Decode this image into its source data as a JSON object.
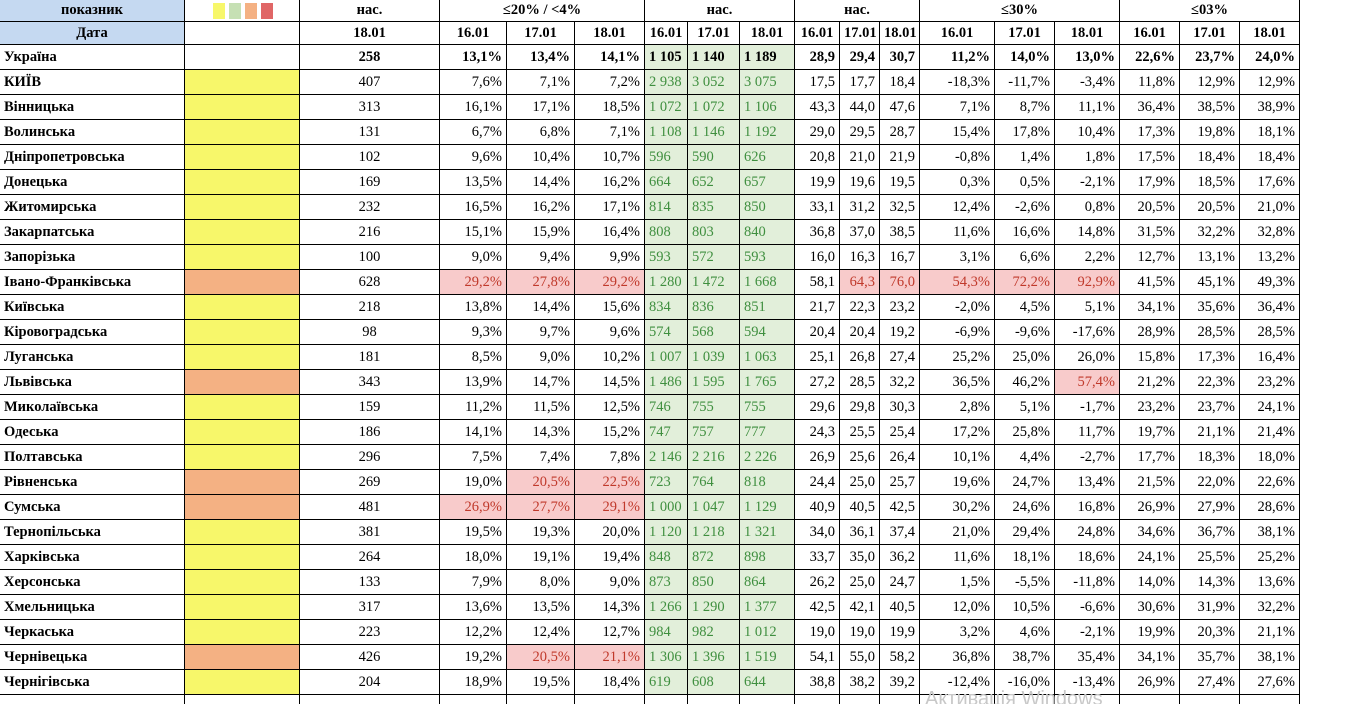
{
  "header": {
    "groups": [
      "показник",
      "нас.",
      "≤20% / <4%",
      "нас.",
      "нас.",
      "≤30%",
      "≤03%"
    ],
    "date_label": "Дата",
    "dates": [
      "18.01",
      "16.01",
      "17.01",
      "18.01",
      "16.01",
      "17.01",
      "18.01",
      "16.01",
      "17.01",
      "18.01",
      "16.01",
      "17.01",
      "18.01",
      "16.01",
      "17.01",
      "18.01"
    ]
  },
  "rows": [
    {
      "cells": [
        "Україна",
        "258",
        "13,1%",
        "13,4%",
        "14,1%",
        "1 105",
        "1 140",
        "1 189",
        "28,9",
        "29,4",
        "30,7",
        "11,2%",
        "14,0%",
        "13,0%",
        "22,6%",
        "23,7%",
        "24,0%"
      ],
      "alerts": []
    },
    {
      "cells": [
        "КИЇВ",
        "407",
        "7,6%",
        "7,1%",
        "7,2%",
        "2 938",
        "3 052",
        "3 075",
        "17,5",
        "17,7",
        "18,4",
        "-18,3%",
        "-11,7%",
        "-3,4%",
        "11,8%",
        "12,9%",
        "12,9%"
      ],
      "flag": "#f7f76a",
      "alerts": []
    },
    {
      "cells": [
        "Вінницька",
        "313",
        "16,1%",
        "17,1%",
        "18,5%",
        "1 072",
        "1 072",
        "1 106",
        "43,3",
        "44,0",
        "47,6",
        "7,1%",
        "8,7%",
        "11,1%",
        "36,4%",
        "38,5%",
        "38,9%"
      ],
      "flag": "#f7f76a",
      "alerts": []
    },
    {
      "cells": [
        "Волинська",
        "131",
        "6,7%",
        "6,8%",
        "7,1%",
        "1 108",
        "1 146",
        "1 192",
        "29,0",
        "29,5",
        "28,7",
        "15,4%",
        "17,8%",
        "10,4%",
        "17,3%",
        "19,8%",
        "18,1%"
      ],
      "flag": "#f7f76a",
      "alerts": []
    },
    {
      "cells": [
        "Дніпропетровська",
        "102",
        "9,6%",
        "10,4%",
        "10,7%",
        "596",
        "590",
        "626",
        "20,8",
        "21,0",
        "21,9",
        "-0,8%",
        "1,4%",
        "1,8%",
        "17,5%",
        "18,4%",
        "18,4%"
      ],
      "flag": "#f7f76a",
      "alerts": []
    },
    {
      "cells": [
        "Донецька",
        "169",
        "13,5%",
        "14,4%",
        "16,2%",
        "664",
        "652",
        "657",
        "19,9",
        "19,6",
        "19,5",
        "0,3%",
        "0,5%",
        "-2,1%",
        "17,9%",
        "18,5%",
        "17,6%"
      ],
      "flag": "#f7f76a",
      "alerts": []
    },
    {
      "cells": [
        "Житомирська",
        "232",
        "16,5%",
        "16,2%",
        "17,1%",
        "814",
        "835",
        "850",
        "33,1",
        "31,2",
        "32,5",
        "12,4%",
        "-2,6%",
        "0,8%",
        "20,5%",
        "20,5%",
        "21,0%"
      ],
      "flag": "#f7f76a",
      "alerts": []
    },
    {
      "cells": [
        "Закарпатська",
        "216",
        "15,1%",
        "15,9%",
        "16,4%",
        "808",
        "803",
        "840",
        "36,8",
        "37,0",
        "38,5",
        "11,6%",
        "16,6%",
        "14,8%",
        "31,5%",
        "32,2%",
        "32,8%"
      ],
      "flag": "#f7f76a",
      "alerts": []
    },
    {
      "cells": [
        "Запорізька",
        "100",
        "9,0%",
        "9,4%",
        "9,9%",
        "593",
        "572",
        "593",
        "16,0",
        "16,3",
        "16,7",
        "3,1%",
        "6,6%",
        "2,2%",
        "12,7%",
        "13,1%",
        "13,2%"
      ],
      "flag": "#f7f76a",
      "alerts": []
    },
    {
      "cells": [
        "Івано-Франківська",
        "628",
        "29,2%",
        "27,8%",
        "29,2%",
        "1 280",
        "1 472",
        "1 668",
        "58,1",
        "64,3",
        "76,0",
        "54,3%",
        "72,2%",
        "92,9%",
        "41,5%",
        "45,1%",
        "49,3%"
      ],
      "flag": "#f4b183",
      "alerts": [
        2,
        3,
        4,
        9,
        10,
        11,
        12,
        13
      ]
    },
    {
      "cells": [
        "Київська",
        "218",
        "13,8%",
        "14,4%",
        "15,6%",
        "834",
        "836",
        "851",
        "21,7",
        "22,3",
        "23,2",
        "-2,0%",
        "4,5%",
        "5,1%",
        "34,1%",
        "35,6%",
        "36,4%"
      ],
      "flag": "#f7f76a",
      "alerts": []
    },
    {
      "cells": [
        "Кіровоградська",
        "98",
        "9,3%",
        "9,7%",
        "9,6%",
        "574",
        "568",
        "594",
        "20,4",
        "20,4",
        "19,2",
        "-6,9%",
        "-9,6%",
        "-17,6%",
        "28,9%",
        "28,5%",
        "28,5%"
      ],
      "flag": "#f7f76a",
      "alerts": []
    },
    {
      "cells": [
        "Луганська",
        "181",
        "8,5%",
        "9,0%",
        "10,2%",
        "1 007",
        "1 039",
        "1 063",
        "25,1",
        "26,8",
        "27,4",
        "25,2%",
        "25,0%",
        "26,0%",
        "15,8%",
        "17,3%",
        "16,4%"
      ],
      "flag": "#f7f76a",
      "alerts": []
    },
    {
      "cells": [
        "Львівська",
        "343",
        "13,9%",
        "14,7%",
        "14,5%",
        "1 486",
        "1 595",
        "1 765",
        "27,2",
        "28,5",
        "32,2",
        "36,5%",
        "46,2%",
        "57,4%",
        "21,2%",
        "22,3%",
        "23,2%"
      ],
      "flag": "#f4b183",
      "alerts": [
        13
      ]
    },
    {
      "cells": [
        "Миколаївська",
        "159",
        "11,2%",
        "11,5%",
        "12,5%",
        "746",
        "755",
        "755",
        "29,6",
        "29,8",
        "30,3",
        "2,8%",
        "5,1%",
        "-1,7%",
        "23,2%",
        "23,7%",
        "24,1%"
      ],
      "flag": "#f7f76a",
      "alerts": []
    },
    {
      "cells": [
        "Одеська",
        "186",
        "14,1%",
        "14,3%",
        "15,2%",
        "747",
        "757",
        "777",
        "24,3",
        "25,5",
        "25,4",
        "17,2%",
        "25,8%",
        "11,7%",
        "19,7%",
        "21,1%",
        "21,4%"
      ],
      "flag": "#f7f76a",
      "alerts": []
    },
    {
      "cells": [
        "Полтавська",
        "296",
        "7,5%",
        "7,4%",
        "7,8%",
        "2 146",
        "2 216",
        "2 226",
        "26,9",
        "25,6",
        "26,4",
        "10,1%",
        "4,4%",
        "-2,7%",
        "17,7%",
        "18,3%",
        "18,0%"
      ],
      "flag": "#f7f76a",
      "alerts": []
    },
    {
      "cells": [
        "Рівненська",
        "269",
        "19,0%",
        "20,5%",
        "22,5%",
        "723",
        "764",
        "818",
        "24,4",
        "25,0",
        "25,7",
        "19,6%",
        "24,7%",
        "13,4%",
        "21,5%",
        "22,0%",
        "22,6%"
      ],
      "flag": "#f4b183",
      "alerts": [
        3,
        4
      ]
    },
    {
      "cells": [
        "Сумська",
        "481",
        "26,9%",
        "27,7%",
        "29,1%",
        "1 000",
        "1 047",
        "1 129",
        "40,9",
        "40,5",
        "42,5",
        "30,2%",
        "24,6%",
        "16,8%",
        "26,9%",
        "27,9%",
        "28,6%"
      ],
      "flag": "#f4b183",
      "alerts": [
        2,
        3,
        4
      ]
    },
    {
      "cells": [
        "Тернопільська",
        "381",
        "19,5%",
        "19,3%",
        "20,0%",
        "1 120",
        "1 218",
        "1 321",
        "34,0",
        "36,1",
        "37,4",
        "21,0%",
        "29,4%",
        "24,8%",
        "34,6%",
        "36,7%",
        "38,1%"
      ],
      "flag": "#f7f76a",
      "alerts": []
    },
    {
      "cells": [
        "Харківська",
        "264",
        "18,0%",
        "19,1%",
        "19,4%",
        "848",
        "872",
        "898",
        "33,7",
        "35,0",
        "36,2",
        "11,6%",
        "18,1%",
        "18,6%",
        "24,1%",
        "25,5%",
        "25,2%"
      ],
      "flag": "#f7f76a",
      "alerts": []
    },
    {
      "cells": [
        "Херсонська",
        "133",
        "7,9%",
        "8,0%",
        "9,0%",
        "873",
        "850",
        "864",
        "26,2",
        "25,0",
        "24,7",
        "1,5%",
        "-5,5%",
        "-11,8%",
        "14,0%",
        "14,3%",
        "13,6%"
      ],
      "flag": "#f7f76a",
      "alerts": []
    },
    {
      "cells": [
        "Хмельницька",
        "317",
        "13,6%",
        "13,5%",
        "14,3%",
        "1 266",
        "1 290",
        "1 377",
        "42,5",
        "42,1",
        "40,5",
        "12,0%",
        "10,5%",
        "-6,6%",
        "30,6%",
        "31,9%",
        "32,2%"
      ],
      "flag": "#f7f76a",
      "alerts": []
    },
    {
      "cells": [
        "Черкаська",
        "223",
        "12,2%",
        "12,4%",
        "12,7%",
        "984",
        "982",
        "1 012",
        "19,0",
        "19,0",
        "19,9",
        "3,2%",
        "4,6%",
        "-2,1%",
        "19,9%",
        "20,3%",
        "21,1%"
      ],
      "flag": "#f7f76a",
      "alerts": []
    },
    {
      "cells": [
        "Чернівецька",
        "426",
        "19,2%",
        "20,5%",
        "21,1%",
        "1 306",
        "1 396",
        "1 519",
        "54,1",
        "55,0",
        "58,2",
        "36,8%",
        "38,7%",
        "35,4%",
        "34,1%",
        "35,7%",
        "38,1%"
      ],
      "flag": "#f4b183",
      "alerts": [
        3,
        4
      ]
    },
    {
      "cells": [
        "Чернігівська",
        "204",
        "18,9%",
        "19,5%",
        "18,4%",
        "619",
        "608",
        "644",
        "38,8",
        "38,2",
        "39,2",
        "-12,4%",
        "-16,0%",
        "-13,4%",
        "26,9%",
        "27,4%",
        "27,6%"
      ],
      "flag": "#f7f76a",
      "alerts": []
    }
  ],
  "watermark": "Активація Windows"
}
